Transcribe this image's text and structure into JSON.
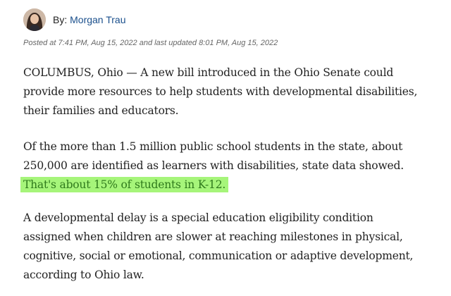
{
  "byline": {
    "prefix": "By:",
    "author": "Morgan Trau"
  },
  "timestamp": "Posted at 7:41 PM, Aug 15, 2022 and last updated 8:01 PM, Aug 15, 2022",
  "article": {
    "paragraph1": [
      "COLUMBUS, Ohio — A new bill introduced in the Ohio Senate could",
      "provide more resources to help students with developmental disabilities,",
      "their families and educators."
    ],
    "paragraph2": [
      "Of the more than 1.5 million public school students in the state, about",
      "250,000 are identified as learners with disabilities, state data showed."
    ],
    "paragraph2_highlight": "That's about 15% of students in K-12.",
    "paragraph3": [
      "A developmental delay is a special education eligibility condition",
      "assigned when children are slower at reaching milestones in physical,",
      "cognitive, social or emotional, communication or adaptive development,",
      "according to Ohio law."
    ]
  },
  "colors": {
    "highlight_background": "#a6f57a",
    "highlight_text": "#2f7a1c",
    "author_link": "#1a4f8c"
  }
}
